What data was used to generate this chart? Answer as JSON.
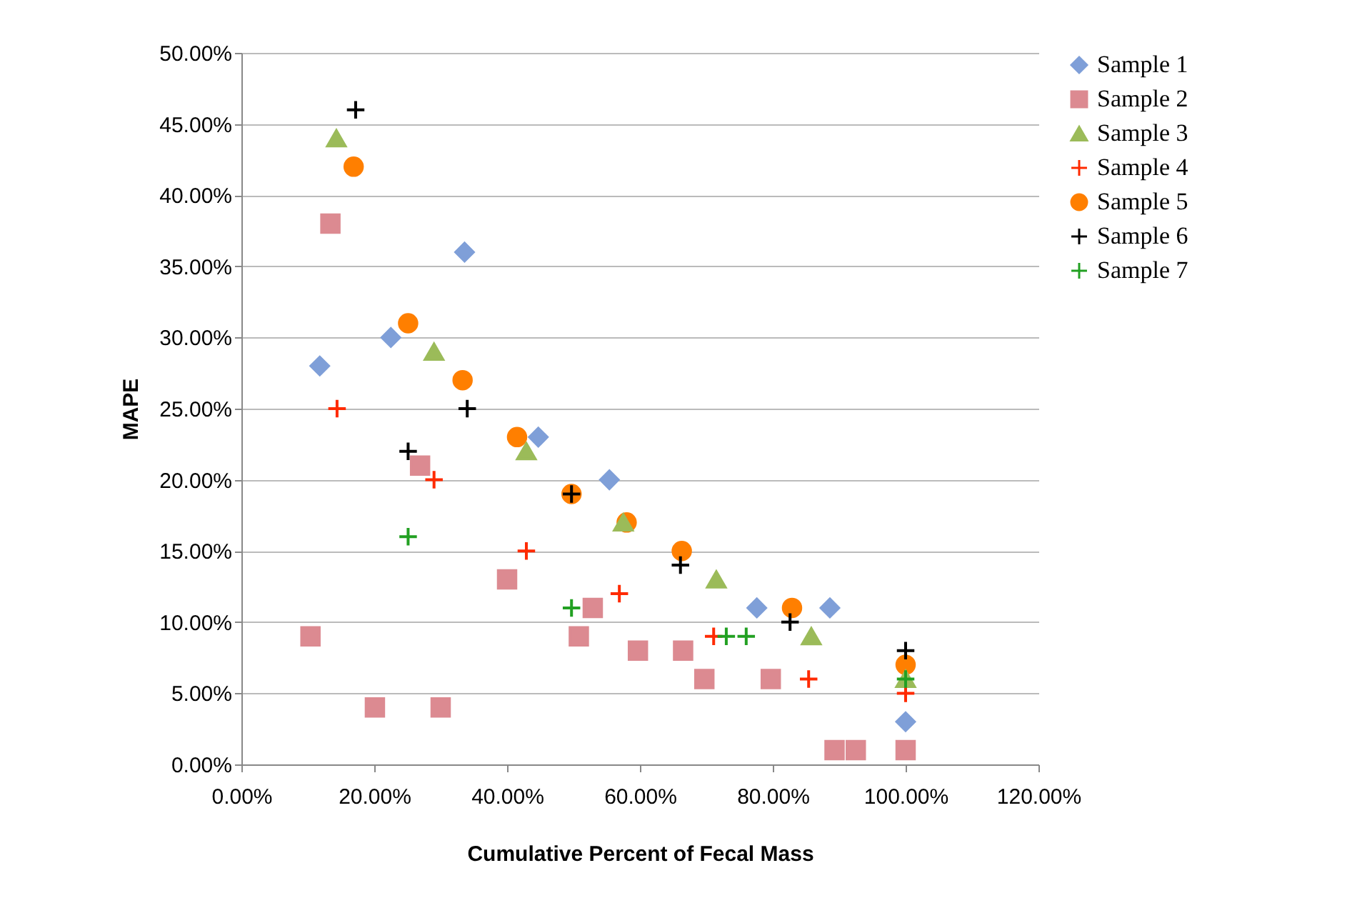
{
  "chart_data": {
    "type": "scatter",
    "xlabel": "Cumulative Percent of Fecal Mass",
    "ylabel": "MAPE",
    "xlim": [
      0,
      120
    ],
    "xticks": [
      {
        "value": 0,
        "label": "0.00%"
      },
      {
        "value": 20,
        "label": "20.00%"
      },
      {
        "value": 40,
        "label": "40.00%"
      },
      {
        "value": 60,
        "label": "60.00%"
      },
      {
        "value": 80,
        "label": "80.00%"
      },
      {
        "value": 100,
        "label": "100.00%"
      },
      {
        "value": 120,
        "label": "120.00%"
      }
    ],
    "ylim": [
      0,
      50
    ],
    "yticks": [
      {
        "value": 0,
        "label": "0.00%"
      },
      {
        "value": 5,
        "label": "5.00%"
      },
      {
        "value": 10,
        "label": "10.00%"
      },
      {
        "value": 15,
        "label": "15.00%"
      },
      {
        "value": 20,
        "label": "20.00%"
      },
      {
        "value": 25,
        "label": "25.00%"
      },
      {
        "value": 30,
        "label": "30.00%"
      },
      {
        "value": 35,
        "label": "35.00%"
      },
      {
        "value": 40,
        "label": "40.00%"
      },
      {
        "value": 45,
        "label": "45.00%"
      },
      {
        "value": 50,
        "label": "50.00%"
      }
    ],
    "grid": "y",
    "legend": "right",
    "series": [
      {
        "name": "Sample 1",
        "color": "#7f9fd8",
        "marker": "diamond",
        "x": [
          11.8,
          22.5,
          33.6,
          44.7,
          55.4,
          77.6,
          88.6,
          100
        ],
        "values": [
          28,
          30,
          36,
          23,
          20,
          11,
          11,
          3
        ]
      },
      {
        "name": "Sample 2",
        "color": "#dc8a91",
        "marker": "square",
        "x": [
          13.4,
          10.4,
          20.1,
          30,
          26.9,
          40,
          50.8,
          52.9,
          59.7,
          66.5,
          69.7,
          79.7,
          89.3,
          92.5,
          100
        ],
        "values": [
          38,
          9,
          4,
          4,
          21,
          13,
          9,
          11,
          8,
          8,
          6,
          6,
          1,
          1,
          1
        ]
      },
      {
        "name": "Sample 3",
        "color": "#9bbb59",
        "marker": "triangle",
        "x": [
          14.3,
          29,
          42.9,
          57.5,
          71.5,
          85.8,
          100
        ],
        "values": [
          44,
          29,
          22,
          17,
          13,
          9,
          6
        ]
      },
      {
        "name": "Sample 4",
        "color": "#ff2a00",
        "marker": "cross",
        "x": [
          14.4,
          29,
          42.9,
          56.9,
          71.1,
          85.4,
          100
        ],
        "values": [
          25,
          20,
          15,
          12,
          9,
          6,
          5
        ]
      },
      {
        "name": "Sample 5",
        "color": "#ff7f00",
        "marker": "circle",
        "x": [
          16.9,
          25.1,
          33.3,
          41.5,
          49.7,
          58,
          66.3,
          82.9,
          100
        ],
        "values": [
          42,
          31,
          27,
          23,
          19,
          17,
          15,
          11,
          7
        ]
      },
      {
        "name": "Sample 6",
        "color": "#000000",
        "marker": "cross",
        "x": [
          17.2,
          25.1,
          34,
          49.7,
          66.1,
          82.6,
          100
        ],
        "values": [
          46,
          22,
          25,
          19,
          14,
          10,
          8
        ]
      },
      {
        "name": "Sample 7",
        "color": "#22a022",
        "marker": "cross",
        "x": [
          25.1,
          49.7,
          73,
          76,
          100
        ],
        "values": [
          16,
          11,
          9,
          9,
          6
        ]
      }
    ]
  }
}
